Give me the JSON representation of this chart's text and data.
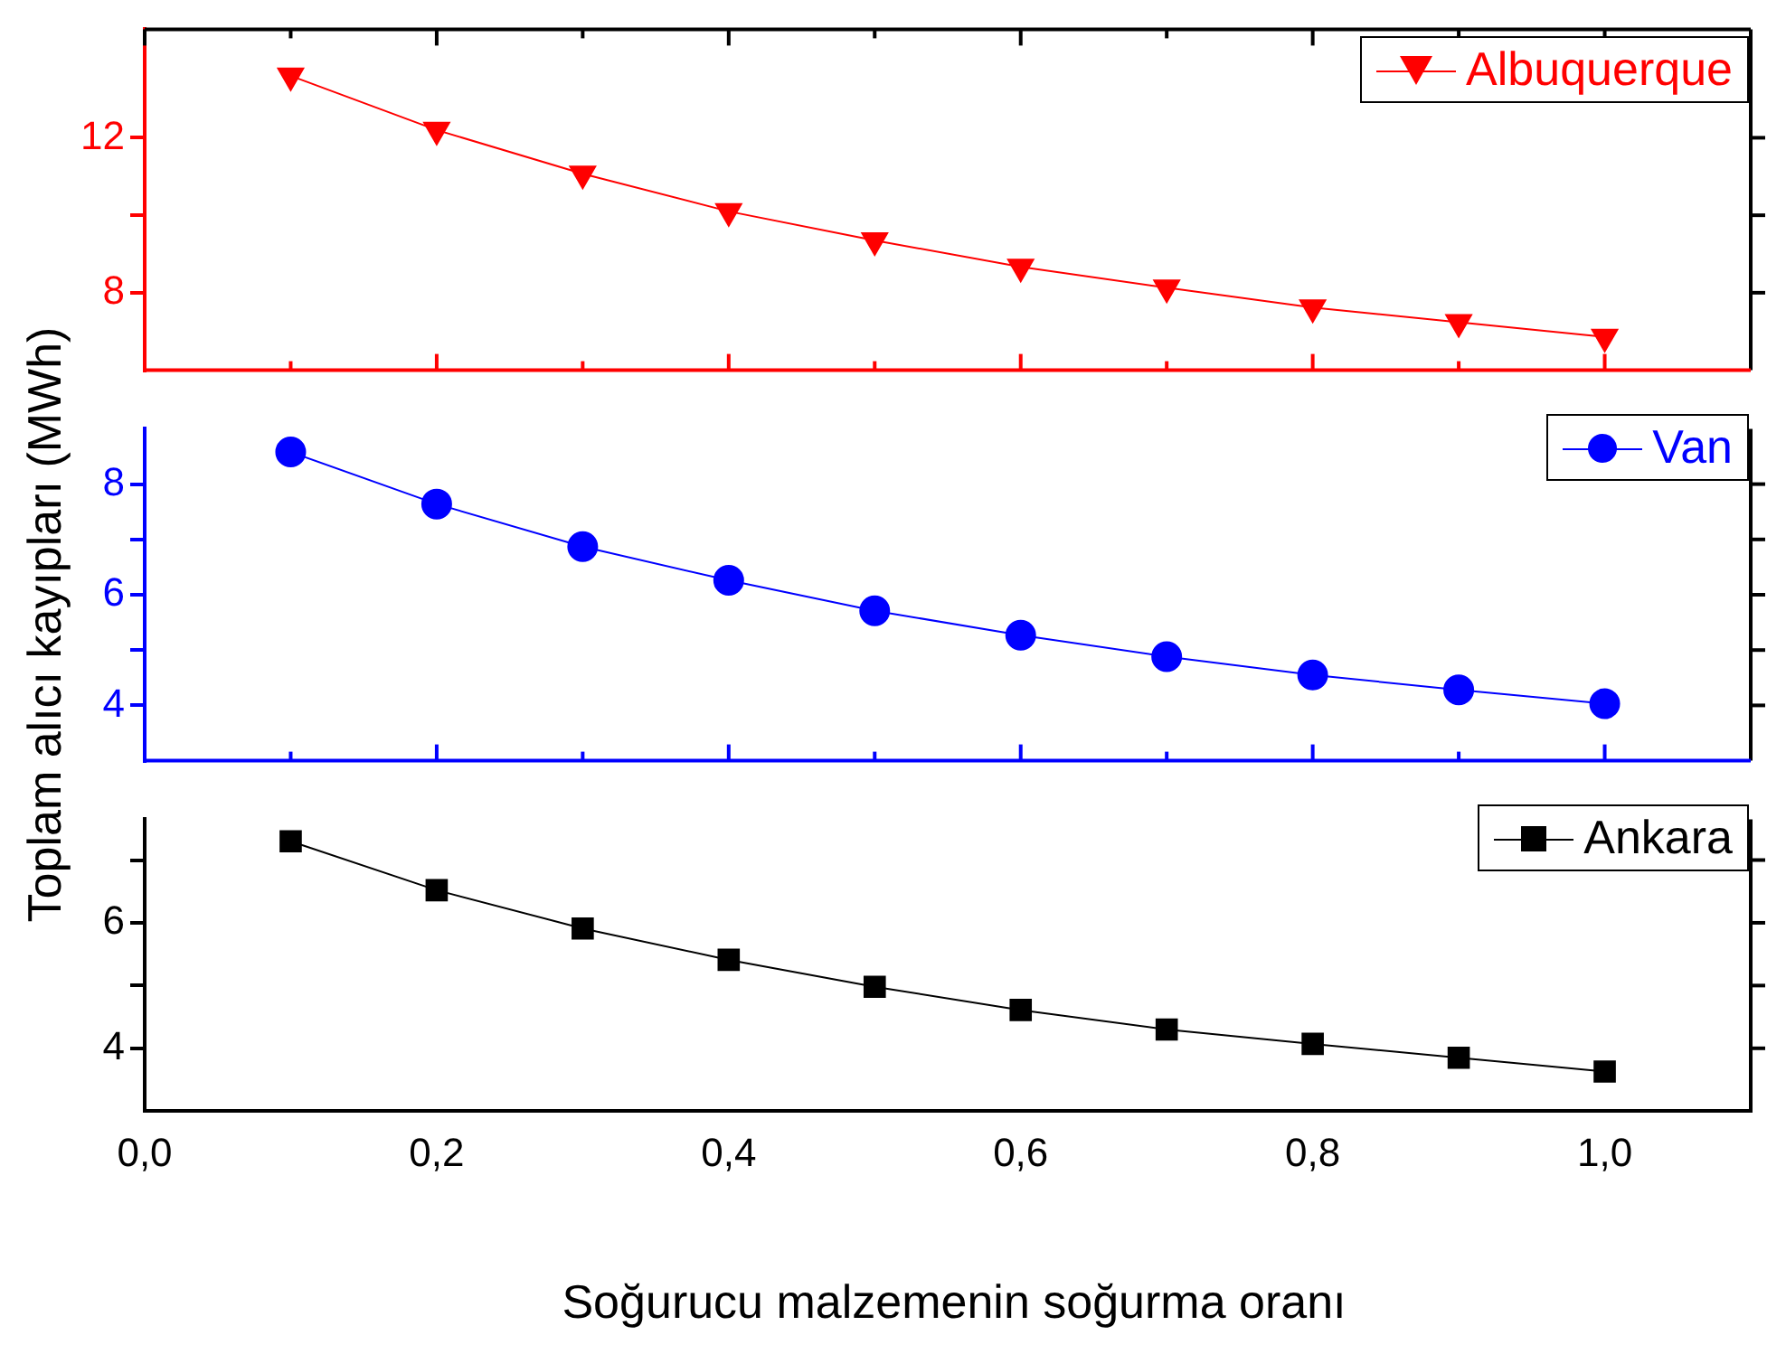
{
  "chart_data": [
    {
      "type": "line",
      "x": [
        0.1,
        0.2,
        0.3,
        0.4,
        0.5,
        0.6,
        0.7,
        0.8,
        0.9,
        1.0
      ],
      "series": [
        {
          "name": "Albuquerque",
          "color": "#ff0000",
          "marker": "triangle",
          "values": [
            13.6,
            12.2,
            11.07,
            10.1,
            9.35,
            8.67,
            8.13,
            7.62,
            7.24,
            6.86
          ]
        }
      ],
      "xlim": [
        0,
        1.1
      ],
      "ylim": [
        6,
        14.8
      ],
      "yticks": [
        8,
        {
          "value": 10,
          "label": null
        },
        12
      ],
      "tick_labels": "y",
      "legend": "top right",
      "grid": false
    },
    {
      "type": "line",
      "x": [
        0.1,
        0.2,
        0.3,
        0.4,
        0.5,
        0.6,
        0.7,
        0.8,
        0.9,
        1.0
      ],
      "ylabel": "Toplam alıcı kayıpları (MWh)",
      "series": [
        {
          "name": "Van",
          "color": "#0000ff",
          "marker": "circle",
          "values": [
            8.58,
            7.64,
            6.87,
            6.26,
            5.71,
            5.27,
            4.88,
            4.55,
            4.28,
            4.03
          ]
        }
      ],
      "xlim": [
        0,
        1.1
      ],
      "ylim": [
        3,
        9
      ],
      "yticks": [
        4,
        {
          "value": 5,
          "label": null
        },
        6,
        {
          "value": 7,
          "label": null
        },
        8
      ],
      "tick_labels": "y",
      "legend": "top right",
      "grid": false
    },
    {
      "type": "line",
      "x": [
        0.1,
        0.2,
        0.3,
        0.4,
        0.5,
        0.6,
        0.7,
        0.8,
        0.9,
        1.0
      ],
      "xlabel": "Soğurucu malzemenin soğurma oranı",
      "series": [
        {
          "name": "Ankara",
          "color": "#000000",
          "marker": "square",
          "values": [
            7.3,
            6.52,
            5.91,
            5.41,
            4.98,
            4.61,
            4.3,
            4.07,
            3.85,
            3.63
          ]
        }
      ],
      "xlim": [
        0,
        1.1
      ],
      "ylim": [
        3,
        7.65
      ],
      "yticks": [
        4,
        {
          "value": 5,
          "label": null
        },
        6,
        {
          "value": 7,
          "label": null
        }
      ],
      "xticks": [
        {
          "value": 0,
          "label": "0,0"
        },
        {
          "value": 0.2,
          "label": "0,2"
        },
        {
          "value": 0.4,
          "label": "0,4"
        },
        {
          "value": 0.6,
          "label": "0,6"
        },
        {
          "value": 0.8,
          "label": "0,8"
        },
        {
          "value": 1.0,
          "label": "1,0"
        }
      ],
      "legend": "top right",
      "grid": false
    }
  ]
}
